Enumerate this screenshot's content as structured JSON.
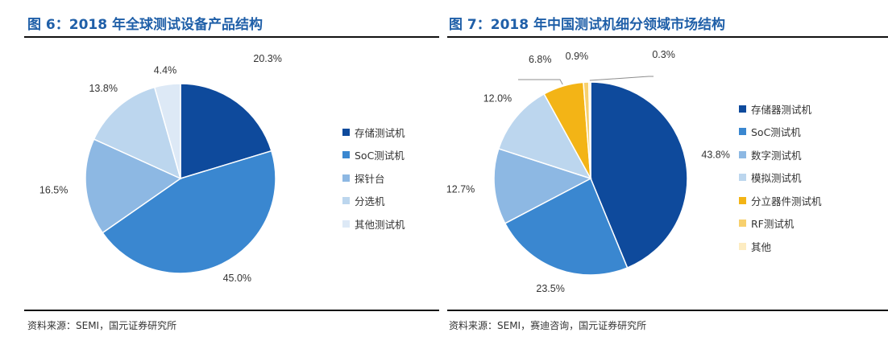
{
  "charts": [
    {
      "title": "图 6：2018 年全球测试设备产品结构",
      "source": "资料来源：SEMI，国元证券研究所"
    },
    {
      "title": "图 7：2018 年中国测试机细分领域市场结构",
      "source": "资料来源：SEMI，赛迪咨询，国元证券研究所"
    }
  ],
  "chart_data": [
    {
      "type": "pie",
      "title": "图 6：2018 年全球测试设备产品结构",
      "categories": [
        "存储测试机",
        "SoC测试机",
        "探针台",
        "分选机",
        "其他测试机"
      ],
      "values": [
        20.3,
        45.0,
        16.5,
        13.8,
        4.4
      ],
      "labels": [
        "20.3%",
        "45.0%",
        "16.5%",
        "13.8%",
        "4.4%"
      ],
      "colors": [
        "#0e4a9c",
        "#3a87d0",
        "#8db8e3",
        "#bcd6ee",
        "#dde9f6"
      ],
      "legend_position": "right"
    },
    {
      "type": "pie",
      "title": "图 7：2018 年中国测试机细分领域市场结构",
      "categories": [
        "存储器测试机",
        "SoC测试机",
        "数字测试机",
        "模拟测试机",
        "分立器件测试机",
        "RF测试机",
        "其他"
      ],
      "values": [
        43.8,
        23.5,
        12.7,
        12.0,
        6.8,
        0.9,
        0.3
      ],
      "labels": [
        "43.8%",
        "23.5%",
        "12.7%",
        "12.0%",
        "6.8%",
        "0.9%",
        "0.3%"
      ],
      "colors": [
        "#0e4a9c",
        "#3a87d0",
        "#8db8e3",
        "#bcd6ee",
        "#f3b416",
        "#f7d06d",
        "#fdecc1"
      ],
      "legend_position": "right"
    }
  ]
}
